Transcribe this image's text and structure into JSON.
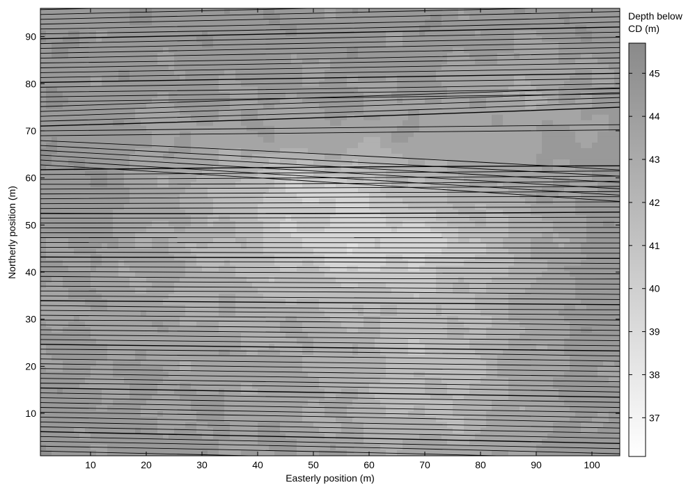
{
  "chart_data": {
    "type": "heatmap",
    "title": "",
    "xlabel": "Easterly position (m)",
    "ylabel": "Northerly position (m)",
    "xlim": [
      1,
      105
    ],
    "ylim": [
      1,
      96
    ],
    "x_ticks": [
      10,
      20,
      30,
      40,
      50,
      60,
      70,
      80,
      90,
      100
    ],
    "y_ticks": [
      10,
      20,
      30,
      40,
      50,
      60,
      70,
      80,
      90
    ],
    "grid": false,
    "colormap": "gray (white = shallow, dark = deep)",
    "colorbar": {
      "label_line1": "Depth below",
      "label_line2": "CD (m)",
      "range": [
        36.1,
        45.7
      ],
      "ticks": [
        37,
        38,
        39,
        40,
        41,
        42,
        43,
        44,
        45
      ]
    },
    "contour_levels": [
      38,
      39,
      40,
      41,
      42,
      43,
      44,
      45
    ],
    "colors": {
      "shallow": "#ffffff",
      "deep": "#8a8a8a",
      "survey_lines": "#000000"
    },
    "overlay": "parallel black survey track lines spanning the x-range, diverging toward the east"
  }
}
